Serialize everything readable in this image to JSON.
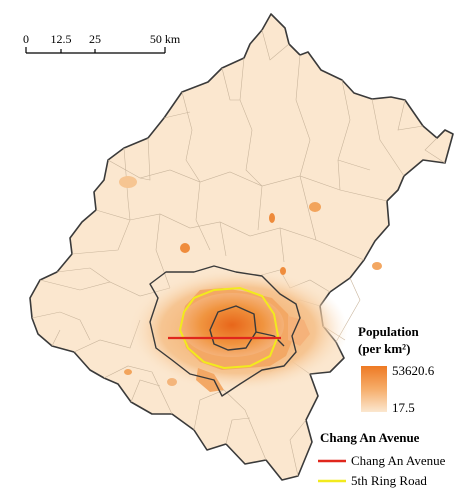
{
  "scale_bar": {
    "ticks": [
      "0",
      "12.5",
      "25",
      "50 km"
    ],
    "tick_values": [
      0,
      12.5,
      25,
      50
    ]
  },
  "legend": {
    "population_title": "Population",
    "population_unit": "(per km²)",
    "max_value": "53620.6",
    "min_value": "17.5",
    "road_title": "Chang An Avenue",
    "items": [
      {
        "label": "Chang An Avenue",
        "color": "#e0261c"
      },
      {
        "label": "5th Ring Road",
        "color": "#f2ea1d"
      }
    ]
  },
  "colors": {
    "low_density": "#fbe7cf",
    "mid_density": "#f6b06b",
    "high_density": "#ee7a24",
    "boundary_inner": "#c9b59c",
    "boundary_district": "#3a3a3a"
  }
}
